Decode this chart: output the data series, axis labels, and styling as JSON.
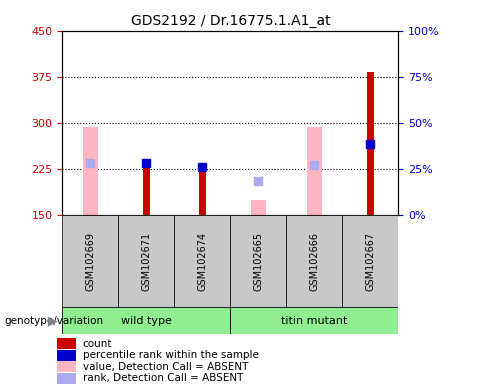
{
  "title": "GDS2192 / Dr.16775.1.A1_at",
  "samples": [
    "GSM102669",
    "GSM102671",
    "GSM102674",
    "GSM102665",
    "GSM102666",
    "GSM102667"
  ],
  "y_min": 150,
  "y_max": 450,
  "y_ticks": [
    150,
    225,
    300,
    375,
    450
  ],
  "y2_ticks": [
    0,
    25,
    50,
    75,
    100
  ],
  "dotted_lines": [
    225,
    300,
    375
  ],
  "pink_bar_tops": [
    293,
    null,
    null,
    175,
    293,
    null
  ],
  "pink_bar_bottoms": [
    150,
    null,
    null,
    150,
    150,
    null
  ],
  "red_bar_tops": [
    null,
    240,
    228,
    null,
    null,
    383
  ],
  "red_bar_bottoms": [
    null,
    150,
    150,
    null,
    null,
    150
  ],
  "blue_marker_y": [
    null,
    235,
    228,
    null,
    null,
    265
  ],
  "light_blue_marker_y": [
    235,
    null,
    null,
    205,
    232,
    null
  ],
  "red_color": "#CC0000",
  "pink_color": "#FFB6C1",
  "blue_color": "#0000CC",
  "light_blue_color": "#AAAAEE",
  "marker_size": 6,
  "tick_color_left": "#CC0000",
  "tick_color_right": "#0000CC",
  "legend_items": [
    "count",
    "percentile rank within the sample",
    "value, Detection Call = ABSENT",
    "rank, Detection Call = ABSENT"
  ],
  "legend_colors": [
    "#CC0000",
    "#0000CC",
    "#FFB6C1",
    "#AAAAEE"
  ],
  "group_label": "genotype/variation",
  "wt_label": "wild type",
  "tm_label": "titin mutant",
  "wt_color": "#90EE90",
  "tm_color": "#90EE90",
  "gray_color": "#C8C8C8",
  "pink_bar_width": 0.28,
  "red_bar_width": 0.12
}
